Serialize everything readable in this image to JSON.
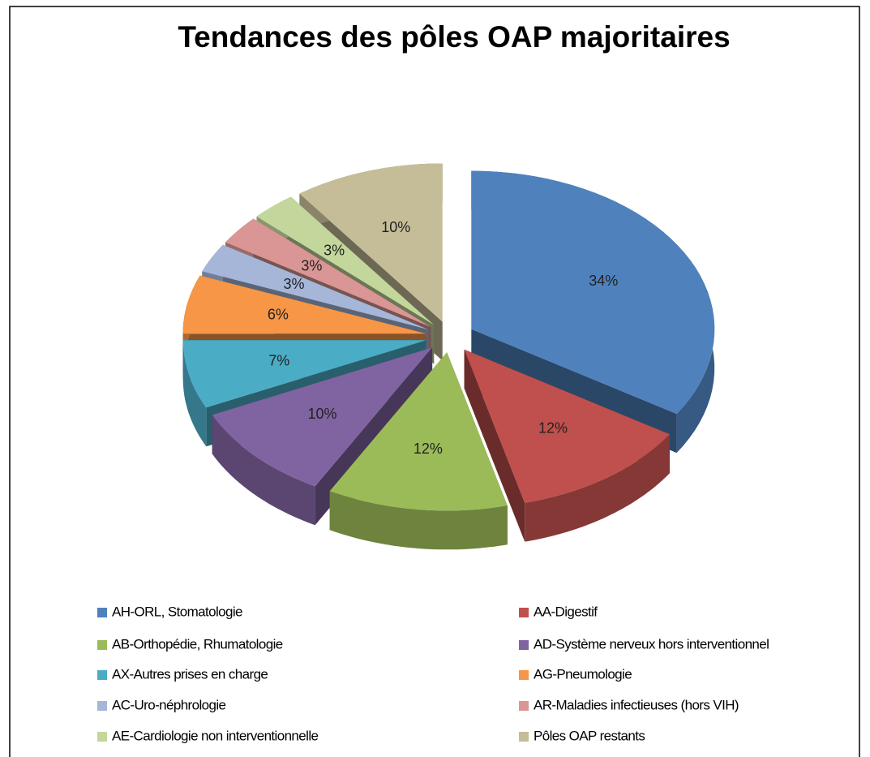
{
  "chart_data": {
    "type": "pie3d",
    "title": "Tendances des pôles OAP majoritaires",
    "categories": [
      "AH-ORL, Stomatologie",
      "AA-Digestif",
      "AB-Orthopédie, Rhumatologie",
      "AD-Système nerveux hors interventionnel",
      "AX-Autres prises en charge",
      "AG-Pneumologie",
      "AC-Uro-néphrologie",
      "AR-Maladies infectieuses (hors VIH)",
      "AE-Cardiologie non interventionnelle",
      "Pôles OAP restants"
    ],
    "values": [
      34,
      12,
      12,
      10,
      7,
      6,
      3,
      3,
      3,
      10
    ],
    "value_labels": [
      "34%",
      "12%",
      "12%",
      "10%",
      "7%",
      "6%",
      "3%",
      "3%",
      "3%",
      "10%"
    ],
    "colors": [
      "#4f81bd",
      "#c0504d",
      "#9bbb59",
      "#8064a2",
      "#4bacc6",
      "#f79646",
      "#a5b6d9",
      "#d99694",
      "#c3d69b",
      "#c4bd97"
    ],
    "legend": "bottom"
  }
}
